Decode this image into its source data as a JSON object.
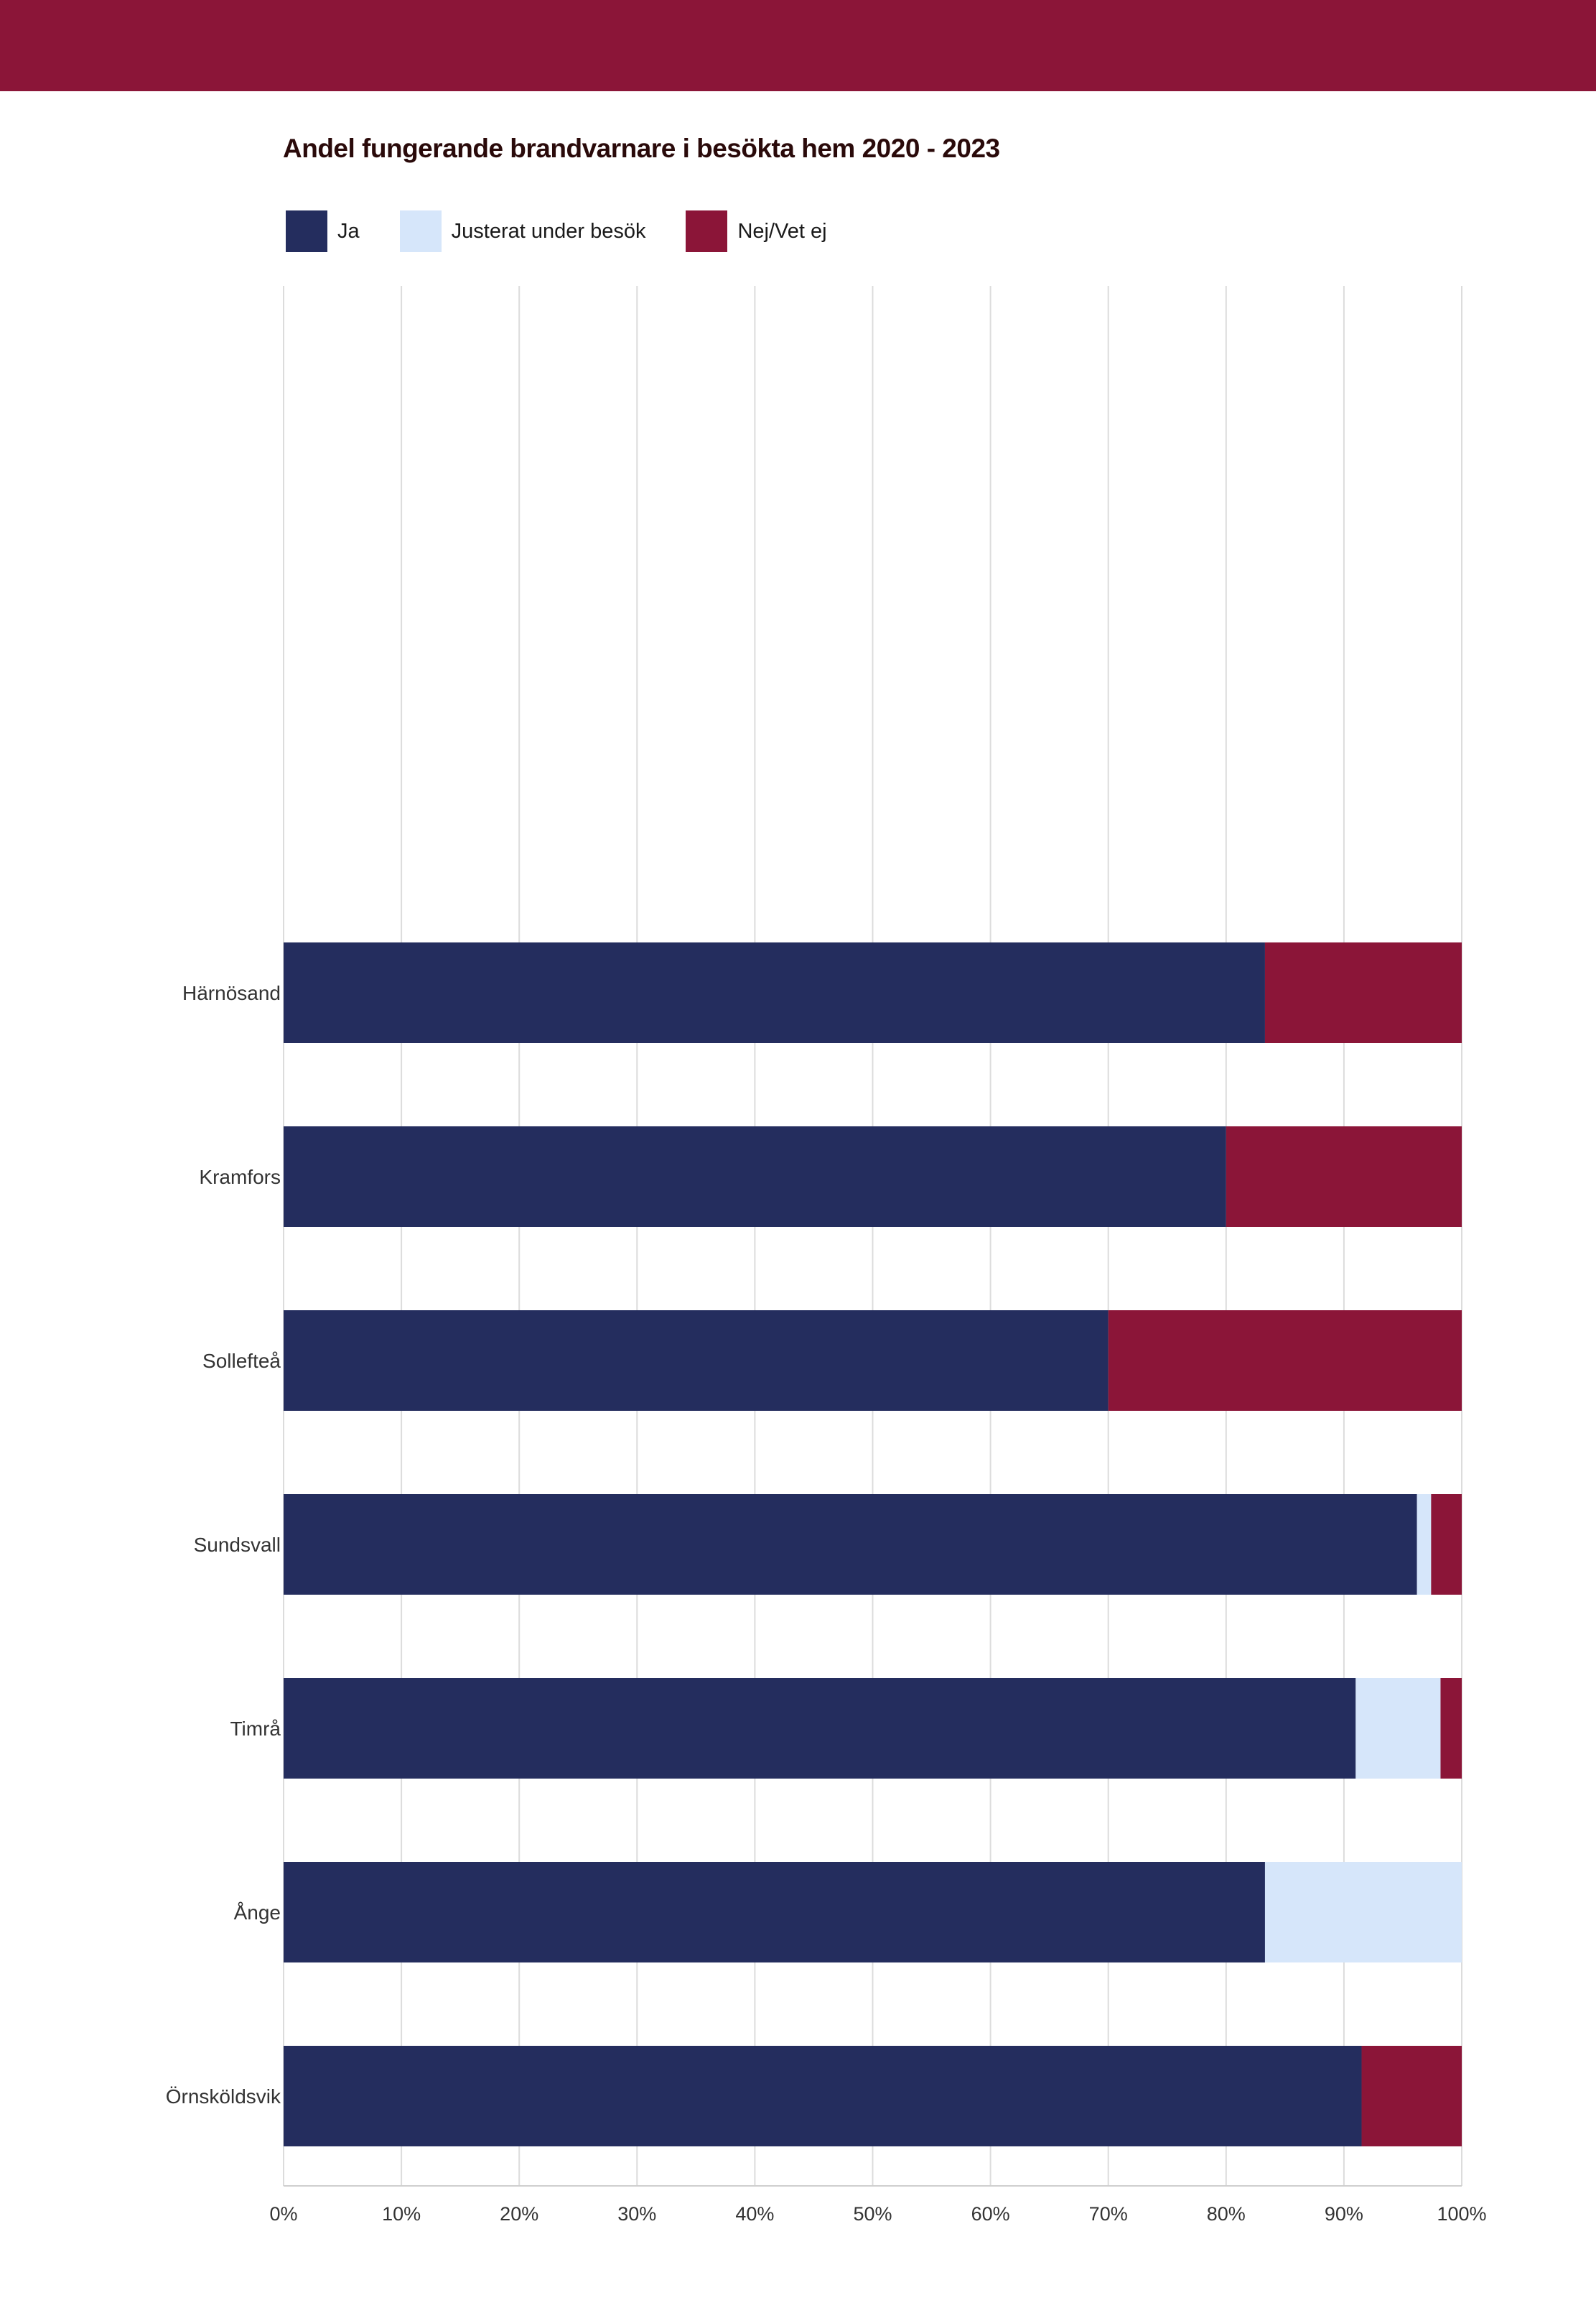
{
  "header": {
    "band_color": "#8b1538"
  },
  "chart_data": {
    "type": "bar",
    "orientation": "horizontal",
    "stacked": true,
    "title": "Andel fungerande brandvarnare i besökta hem 2020 - 2023",
    "xlabel": "",
    "ylabel": "",
    "xlim": [
      0,
      100
    ],
    "grid": true,
    "legend_position": "top-left",
    "x_ticks": [
      "0%",
      "10%",
      "20%",
      "30%",
      "40%",
      "50%",
      "60%",
      "70%",
      "80%",
      "90%",
      "100%"
    ],
    "categories": [
      "Härnösand",
      "Kramfors",
      "Sollefteå",
      "Sundsvall",
      "Timrå",
      "Ånge",
      "Örnsköldsvik"
    ],
    "series": [
      {
        "name": "Ja",
        "color": "#242d5e",
        "values": [
          83.3,
          80,
          70,
          96.2,
          91,
          83.3,
          91.5
        ]
      },
      {
        "name": "Justerat under besök",
        "color": "#d6e6fa",
        "values": [
          0,
          0,
          0,
          1.2,
          7.2,
          16.7,
          0
        ]
      },
      {
        "name": "Nej/Vet ej",
        "color": "#8b1538",
        "values": [
          16.7,
          20,
          30,
          2.6,
          1.8,
          0,
          8.5
        ]
      }
    ]
  }
}
